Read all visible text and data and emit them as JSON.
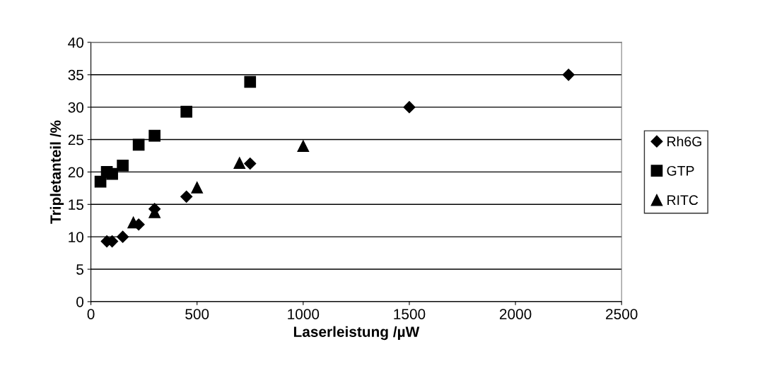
{
  "chart_data": {
    "type": "scatter",
    "xlabel": "Laserleistung /µW",
    "ylabel": "Tripletanteil /%",
    "xlim": [
      0,
      2500
    ],
    "xticks": [
      0,
      500,
      1000,
      1500,
      2000,
      2500
    ],
    "ylim": [
      0,
      40
    ],
    "yticks": [
      0,
      5,
      10,
      15,
      20,
      25,
      30,
      35,
      40
    ],
    "grid": "y",
    "legend": "right",
    "series": [
      {
        "name": "Rh6G",
        "color": "#000000",
        "marker": "diamond",
        "x": [
          75,
          100,
          150,
          225,
          300,
          450,
          750,
          1500,
          2250
        ],
        "values": [
          9.3,
          9.3,
          10,
          11.9,
          14.3,
          16.2,
          21.3,
          30,
          35
        ]
      },
      {
        "name": "GTP",
        "color": "#000000",
        "marker": "square",
        "x": [
          45,
          75,
          100,
          150,
          225,
          300,
          450,
          750
        ],
        "values": [
          18.5,
          20,
          19.7,
          21,
          24.2,
          25.6,
          29.3,
          33.9
        ]
      },
      {
        "name": "RITC",
        "color": "#000000",
        "marker": "triangle",
        "x": [
          200,
          300,
          500,
          700,
          1000
        ],
        "values": [
          12.2,
          13.8,
          17.6,
          21.4,
          24
        ]
      }
    ]
  }
}
